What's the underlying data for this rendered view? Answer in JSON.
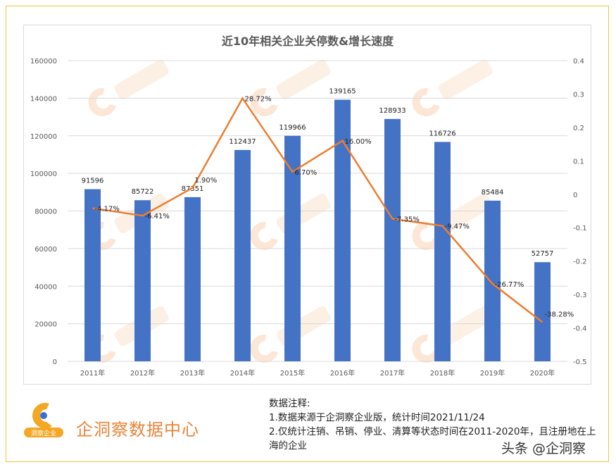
{
  "chart_data": {
    "type": "bar+line",
    "title": "近10年相关企业关停数&增长速度",
    "categories": [
      "2011年",
      "2012年",
      "2013年",
      "2014年",
      "2015年",
      "2016年",
      "2017年",
      "2018年",
      "2019年",
      "2020年"
    ],
    "series": [
      {
        "type": "bar",
        "axis": "left",
        "color": "#4472c4",
        "values": [
          91596,
          85722,
          87351,
          112437,
          119966,
          139165,
          128933,
          116726,
          85484,
          52757
        ]
      },
      {
        "type": "line",
        "axis": "right",
        "color": "#ed7d31",
        "values": [
          -0.0417,
          -0.0641,
          0.019,
          0.2872,
          0.067,
          0.16,
          -0.0735,
          -0.0947,
          -0.2677,
          -0.3828
        ],
        "labels": [
          "-4.17%",
          "-6.41%",
          "1.90%",
          "28.72%",
          "6.70%",
          "16.00%",
          "-7.35%",
          "-9.47%",
          "-26.77%",
          "-38.28%"
        ]
      }
    ],
    "y_left": {
      "range": [
        0,
        160000
      ],
      "ticks": [
        "0",
        "20000",
        "40000",
        "60000",
        "80000",
        "100000",
        "120000",
        "140000",
        "160000"
      ]
    },
    "y_right": {
      "range": [
        -0.5,
        0.4
      ],
      "ticks": [
        "-0.5",
        "-0.4",
        "-0.3",
        "-0.2",
        "-0.1",
        "0",
        "0.1",
        "0.2",
        "0.3",
        "0.4"
      ]
    },
    "grid": true,
    "legend": "none",
    "watermark": "企洞察 qidongcha.com"
  },
  "brand": {
    "name": "企洞察数据中心",
    "logo_text": "洞察企业"
  },
  "notes": {
    "heading": "数据注释:",
    "line1": "1.数据来源于企洞察企业版，统计时间2021/11/24",
    "line2": "2.仅统计注销、吊销、停业、清算等状态时间在2011-2020年，且注册地在上海的企业"
  },
  "credit": "头条 @企洞察"
}
